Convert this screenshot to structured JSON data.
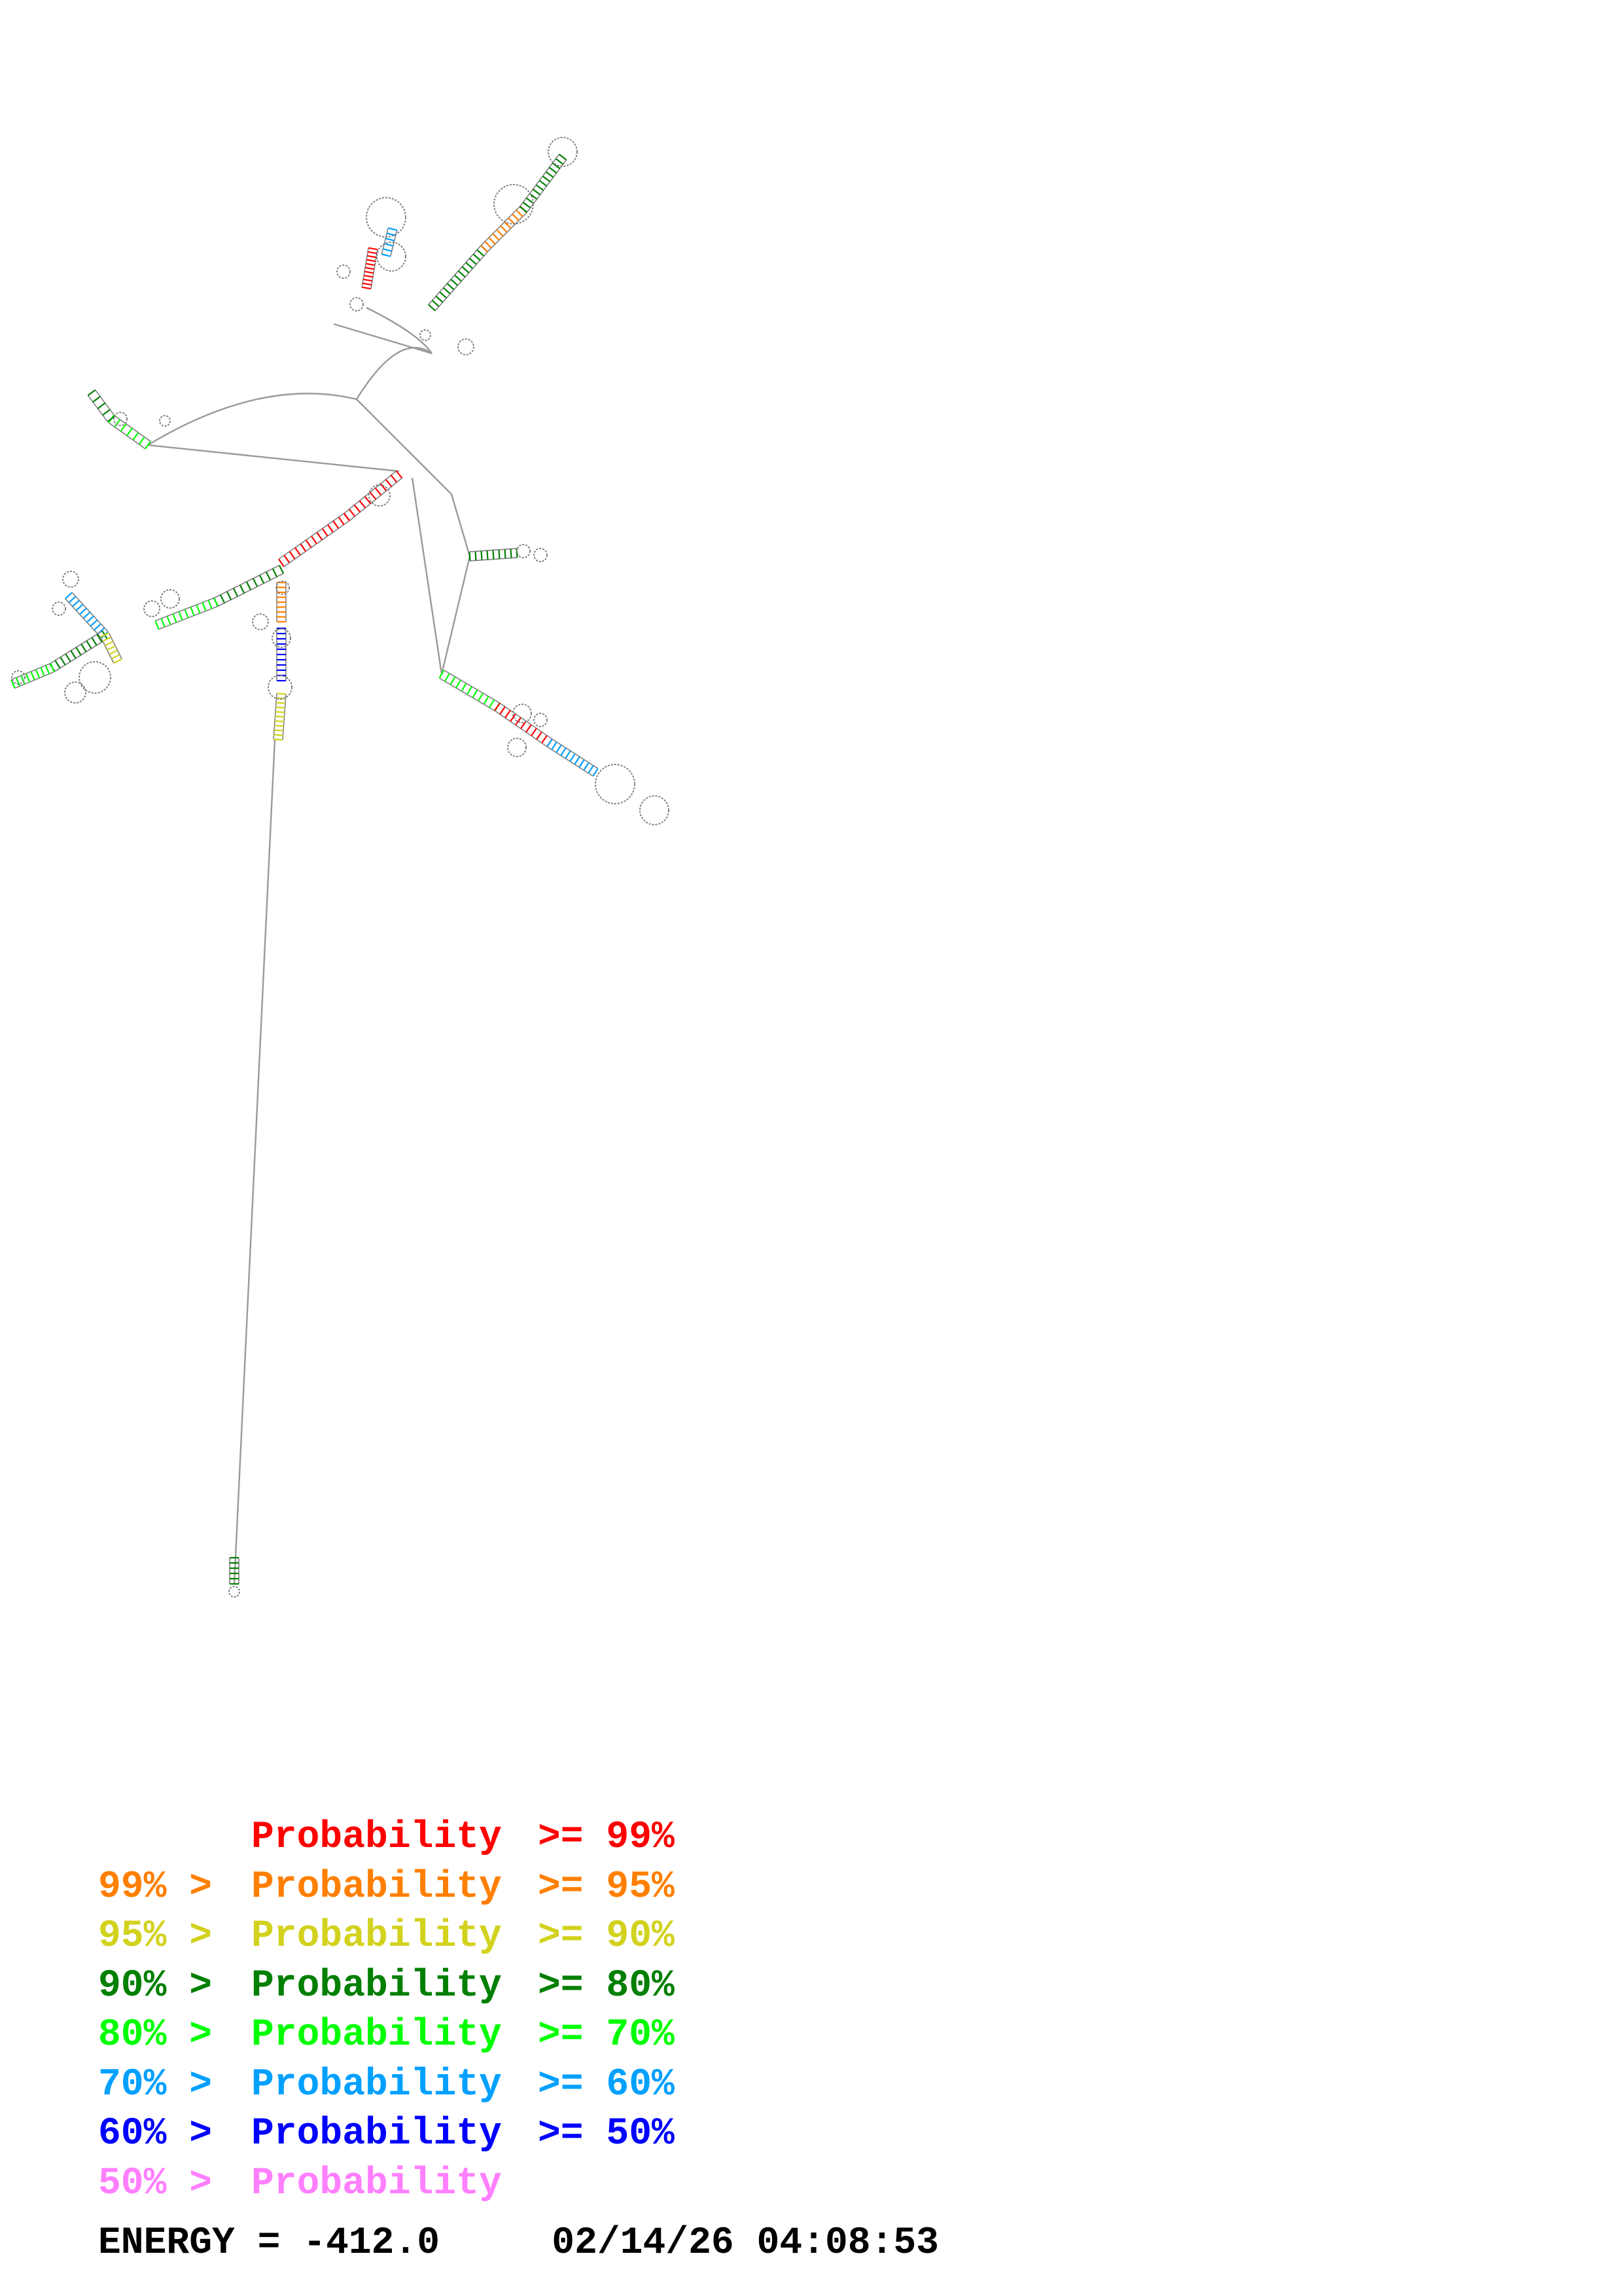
{
  "legend": [
    {
      "prefix": "",
      "label": "Probability",
      "suffix": ">= 99%",
      "color": "#ff0000"
    },
    {
      "prefix": "99% >",
      "label": "Probability",
      "suffix": ">= 95%",
      "color": "#ff7f00"
    },
    {
      "prefix": "95% >",
      "label": "Probability",
      "suffix": ">= 90%",
      "color": "#d2d21e"
    },
    {
      "prefix": "90% >",
      "label": "Probability",
      "suffix": ">= 80%",
      "color": "#007f00"
    },
    {
      "prefix": "80% >",
      "label": "Probability",
      "suffix": ">= 70%",
      "color": "#00ff00"
    },
    {
      "prefix": "70% >",
      "label": "Probability",
      "suffix": ">= 60%",
      "color": "#00a0ff"
    },
    {
      "prefix": "60% >",
      "label": "Probability",
      "suffix": ">= 50%",
      "color": "#0000ff"
    },
    {
      "prefix": "50% >",
      "label": "Probability",
      "suffix": "",
      "color": "#ff7fff"
    }
  ],
  "energy": {
    "label": "ENERGY =",
    "value": "-412.0",
    "date": "02/14/26",
    "time": "04:08:53"
  },
  "structure_colors": {
    "backbone": "#9a9a9a",
    "bases": "#707070"
  }
}
